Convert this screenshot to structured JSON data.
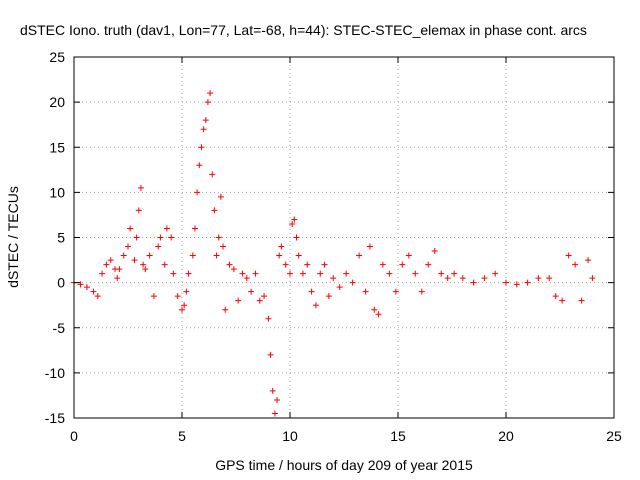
{
  "chart_data": {
    "type": "scatter",
    "title": "dSTEC Iono. truth (dav1, Lon=77, Lat=-68, h=44): STEC-STEC_elemax in phase cont. arcs",
    "xlabel": "GPS time / hours of day 209 of year 2015",
    "ylabel": "dSTEC  / TECUs",
    "xlim": [
      0,
      25
    ],
    "ylim": [
      -15,
      25
    ],
    "xticks": [
      0,
      5,
      10,
      15,
      20,
      25
    ],
    "yticks": [
      -15,
      -10,
      -5,
      0,
      5,
      10,
      15,
      20,
      25
    ],
    "grid": true,
    "marker": "+",
    "color": "#ff0000",
    "series": [
      {
        "name": "",
        "x": [
          0.0,
          0.3,
          0.6,
          0.9,
          1.1,
          1.3,
          1.5,
          1.7,
          1.9,
          2.0,
          2.1,
          2.3,
          2.5,
          2.6,
          2.8,
          2.9,
          3.0,
          3.1,
          3.2,
          3.3,
          3.5,
          3.7,
          3.9,
          4.0,
          4.2,
          4.3,
          4.5,
          4.6,
          4.8,
          5.0,
          5.1,
          5.2,
          5.3,
          5.5,
          5.6,
          5.7,
          5.8,
          5.9,
          6.0,
          6.1,
          6.2,
          6.3,
          6.4,
          6.5,
          6.6,
          6.7,
          6.8,
          6.9,
          7.0,
          7.2,
          7.4,
          7.6,
          7.8,
          8.0,
          8.2,
          8.4,
          8.6,
          8.8,
          9.0,
          9.1,
          9.2,
          9.3,
          9.4,
          9.5,
          9.6,
          9.8,
          10.0,
          10.1,
          10.2,
          10.3,
          10.4,
          10.6,
          10.8,
          11.0,
          11.2,
          11.4,
          11.6,
          11.8,
          12.0,
          12.3,
          12.6,
          12.9,
          13.2,
          13.5,
          13.7,
          13.9,
          14.1,
          14.3,
          14.6,
          14.9,
          15.2,
          15.5,
          15.8,
          16.1,
          16.4,
          16.7,
          17.0,
          17.3,
          17.6,
          18.0,
          18.5,
          19.0,
          19.5,
          20.0,
          20.5,
          21.0,
          21.5,
          22.0,
          22.3,
          22.6,
          22.9,
          23.2,
          23.5,
          23.8,
          24.0
        ],
        "y": [
          0.0,
          -0.2,
          -0.5,
          -1.0,
          -1.5,
          1.0,
          2.0,
          2.5,
          1.5,
          0.5,
          1.5,
          3.0,
          4.0,
          6.0,
          2.5,
          5.0,
          8.0,
          10.5,
          2.0,
          1.5,
          3.0,
          -1.5,
          4.0,
          5.0,
          2.0,
          6.0,
          5.0,
          1.0,
          -1.5,
          -3.0,
          -2.5,
          -1.0,
          1.0,
          3.0,
          6.0,
          10.0,
          13.0,
          15.0,
          17.0,
          18.0,
          20.0,
          21.0,
          12.0,
          8.0,
          3.0,
          5.0,
          9.5,
          4.0,
          -3.0,
          2.0,
          1.5,
          -2.0,
          1.0,
          0.5,
          -1.0,
          1.0,
          -2.0,
          -1.5,
          -4.0,
          -8.0,
          -12.0,
          -14.5,
          -13.0,
          3.0,
          4.0,
          2.0,
          1.0,
          6.5,
          7.0,
          5.0,
          3.0,
          1.0,
          2.0,
          -1.0,
          -2.5,
          1.0,
          2.0,
          -1.5,
          0.5,
          -0.5,
          1.0,
          0.0,
          3.0,
          -1.0,
          4.0,
          -3.0,
          -3.5,
          2.0,
          1.0,
          -1.0,
          2.0,
          3.0,
          1.0,
          -1.0,
          2.0,
          3.5,
          1.0,
          0.5,
          1.0,
          0.5,
          0.0,
          0.5,
          1.0,
          0.0,
          -0.2,
          0.0,
          0.5,
          0.5,
          -1.5,
          -2.0,
          3.0,
          2.0,
          -2.0,
          2.5,
          0.5
        ]
      }
    ]
  }
}
